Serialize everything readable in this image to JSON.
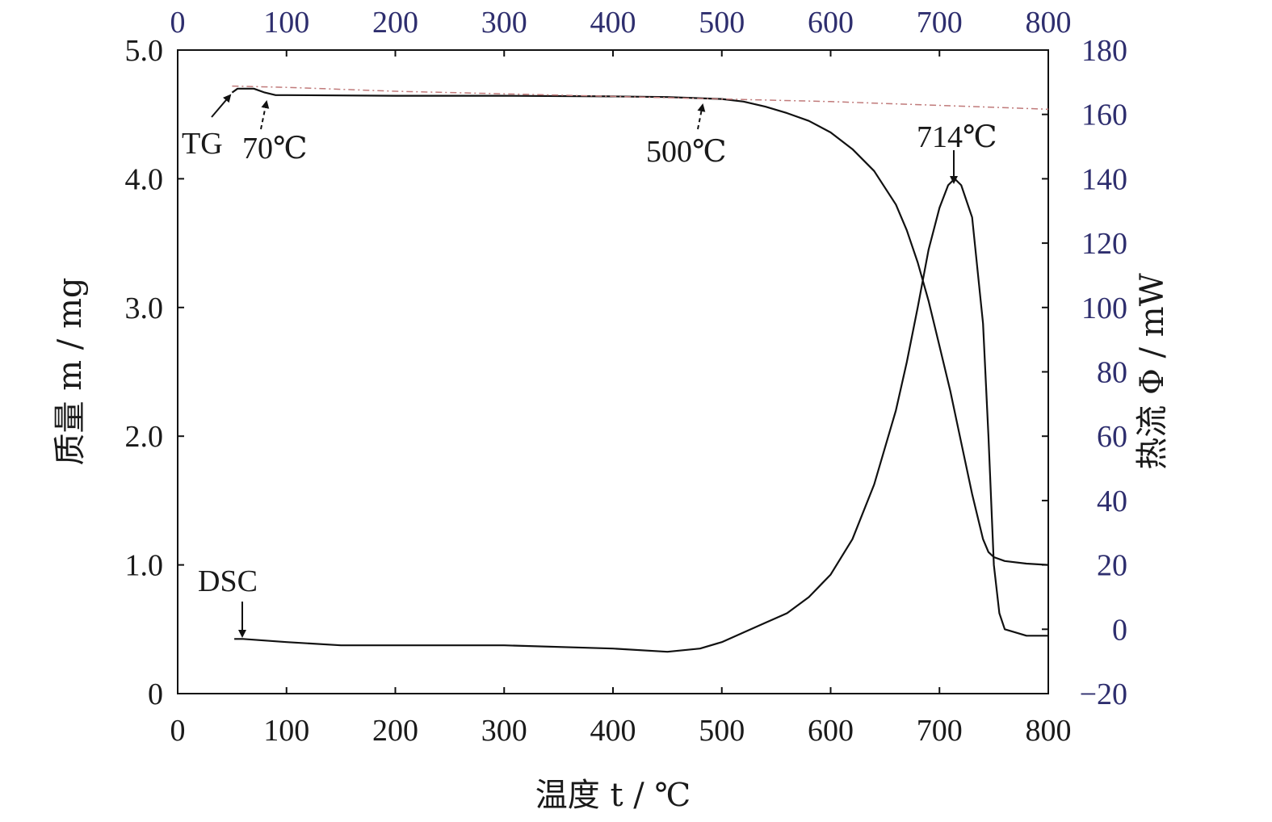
{
  "chart_data": {
    "type": "line",
    "x_axis_bottom": {
      "label": "温度 t / ℃",
      "range": [
        0,
        800
      ],
      "ticks": [
        0,
        100,
        200,
        300,
        400,
        500,
        600,
        700,
        800
      ]
    },
    "x_axis_top": {
      "range": [
        0,
        800
      ],
      "ticks": [
        0,
        100,
        200,
        300,
        400,
        500,
        600,
        700,
        800
      ]
    },
    "y_axis_left": {
      "label": "质量 m / mg",
      "range": [
        0,
        5
      ],
      "ticks": [
        "0",
        "1.0",
        "2.0",
        "3.0",
        "4.0",
        "5.0"
      ],
      "tick_values": [
        0,
        1,
        2,
        3,
        4,
        5
      ]
    },
    "y_axis_right": {
      "label": "热流 Φ / mW",
      "range": [
        -20,
        180
      ],
      "ticks": [
        -20,
        0,
        20,
        40,
        60,
        80,
        100,
        120,
        140,
        160,
        180
      ],
      "tick_labels": [
        "−20",
        "0",
        "20",
        "40",
        "60",
        "80",
        "100",
        "120",
        "140",
        "160",
        "180"
      ]
    },
    "grid": false,
    "series": [
      {
        "name": "TG",
        "axis": "left",
        "color": "#111111",
        "points": [
          [
            50,
            4.67
          ],
          [
            55,
            4.7
          ],
          [
            60,
            4.7
          ],
          [
            70,
            4.7
          ],
          [
            80,
            4.67
          ],
          [
            90,
            4.65
          ],
          [
            100,
            4.65
          ],
          [
            200,
            4.645
          ],
          [
            300,
            4.645
          ],
          [
            400,
            4.64
          ],
          [
            450,
            4.635
          ],
          [
            500,
            4.62
          ],
          [
            520,
            4.6
          ],
          [
            540,
            4.56
          ],
          [
            560,
            4.51
          ],
          [
            580,
            4.45
          ],
          [
            600,
            4.36
          ],
          [
            620,
            4.23
          ],
          [
            640,
            4.06
          ],
          [
            660,
            3.8
          ],
          [
            670,
            3.6
          ],
          [
            680,
            3.35
          ],
          [
            690,
            3.05
          ],
          [
            700,
            2.7
          ],
          [
            710,
            2.35
          ],
          [
            720,
            1.95
          ],
          [
            730,
            1.55
          ],
          [
            740,
            1.2
          ],
          [
            745,
            1.1
          ],
          [
            750,
            1.06
          ],
          [
            760,
            1.03
          ],
          [
            780,
            1.01
          ],
          [
            800,
            1.0
          ]
        ]
      },
      {
        "name": "DSC",
        "axis": "right",
        "color": "#111111",
        "points": [
          [
            52,
            -3
          ],
          [
            60,
            -3
          ],
          [
            100,
            -4
          ],
          [
            150,
            -5
          ],
          [
            200,
            -5
          ],
          [
            300,
            -5
          ],
          [
            400,
            -6
          ],
          [
            450,
            -7
          ],
          [
            480,
            -6
          ],
          [
            500,
            -4
          ],
          [
            520,
            -1
          ],
          [
            540,
            2
          ],
          [
            560,
            5
          ],
          [
            580,
            10
          ],
          [
            600,
            17
          ],
          [
            620,
            28
          ],
          [
            640,
            45
          ],
          [
            660,
            68
          ],
          [
            670,
            83
          ],
          [
            680,
            100
          ],
          [
            690,
            118
          ],
          [
            700,
            131
          ],
          [
            708,
            138
          ],
          [
            714,
            140
          ],
          [
            720,
            138
          ],
          [
            730,
            128
          ],
          [
            740,
            95
          ],
          [
            745,
            60
          ],
          [
            750,
            20
          ],
          [
            755,
            5
          ],
          [
            760,
            0
          ],
          [
            770,
            -1
          ],
          [
            780,
            -2
          ],
          [
            800,
            -2
          ]
        ]
      },
      {
        "name": "",
        "axis": "left",
        "color": "#c07a7a",
        "dashed": true,
        "points": [
          [
            50,
            4.72
          ],
          [
            100,
            4.71
          ],
          [
            200,
            4.68
          ],
          [
            300,
            4.66
          ],
          [
            400,
            4.64
          ],
          [
            500,
            4.62
          ],
          [
            600,
            4.6
          ],
          [
            700,
            4.57
          ],
          [
            800,
            4.54
          ]
        ]
      }
    ],
    "annotations": [
      {
        "id": "tg",
        "text": "TG"
      },
      {
        "id": "t70",
        "text": "70℃"
      },
      {
        "id": "t500",
        "text": "500℃"
      },
      {
        "id": "t714",
        "text": "714℃"
      },
      {
        "id": "dsc",
        "text": "DSC"
      }
    ]
  }
}
